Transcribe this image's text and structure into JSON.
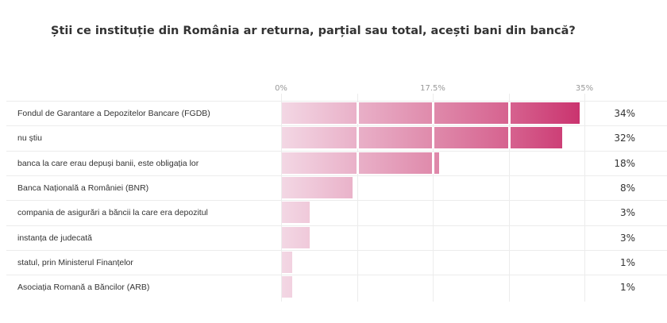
{
  "title": "Știi ce instituție din România ar returna, parțial sau total, acești bani din bancă?",
  "chart_data": {
    "type": "bar",
    "orientation": "horizontal",
    "title": "Știi ce instituție din România ar returna, parțial sau total, acești bani din bancă?",
    "categories": [
      "Fondul de Garantare a Depozitelor Bancare (FGDB)",
      "nu știu",
      "banca la care erau depuși banii, este obligația lor",
      "Banca Națională a României (BNR)",
      "compania de asigurări a băncii la care era depozitul",
      "instanța de judecată",
      "statul, prin Ministerul Finanțelor",
      "Asociația Romană a Băncilor (ARB)"
    ],
    "values": [
      34,
      32,
      18,
      8,
      3,
      3,
      1,
      1
    ],
    "value_labels": [
      "34%",
      "32%",
      "18%",
      "8%",
      "3%",
      "3%",
      "1%",
      "1%"
    ],
    "xlim": [
      0,
      35
    ],
    "ticks": [
      0,
      17.5,
      35
    ],
    "tick_labels": [
      "0%",
      "17.5%",
      "35%"
    ],
    "gradient_colors": [
      "#f3d7e4",
      "#c9306c"
    ]
  }
}
